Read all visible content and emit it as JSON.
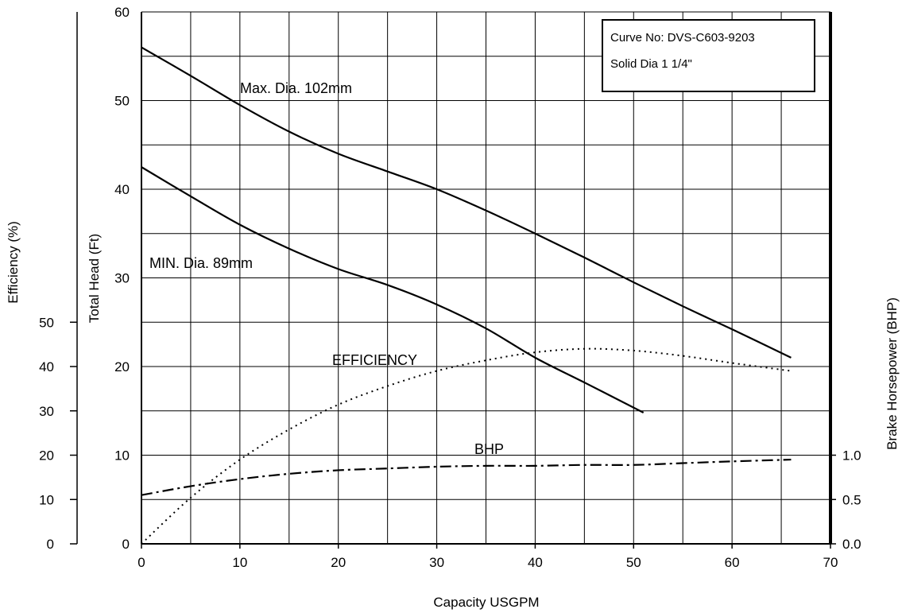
{
  "chart_data": {
    "type": "line",
    "x_axis": {
      "label": "Capacity USGPM",
      "range": [
        0,
        70
      ],
      "ticks": [
        "0",
        "10",
        "20",
        "30",
        "40",
        "50",
        "60",
        "70"
      ]
    },
    "y_axis_head": {
      "label": "Total Head (Ft)",
      "range": [
        0,
        60
      ],
      "ticks": [
        "0",
        "10",
        "20",
        "30",
        "40",
        "50",
        "60"
      ]
    },
    "y_axis_efficiency": {
      "label": "Efficiency (%)",
      "ticks": [
        "0",
        "10",
        "20",
        "30",
        "40",
        "50"
      ]
    },
    "y_axis_bhp": {
      "label": "Brake Horsepower (BHP)",
      "ticks": [
        "0.0",
        "0.5",
        "1.0"
      ]
    },
    "info_box": {
      "curve_no": "Curve No: DVS-C603-9203",
      "solid": "Solid Dia 1 1/4\""
    },
    "grid": true,
    "series": [
      {
        "name": "Max. Dia. 102mm",
        "axis": "head",
        "style": "solid",
        "x": [
          0,
          5,
          10,
          15,
          20,
          25,
          30,
          35,
          40,
          45,
          50,
          55,
          60,
          66
        ],
        "y": [
          56,
          52.8,
          49.5,
          46.5,
          44,
          42,
          40,
          37.6,
          35,
          32.3,
          29.5,
          26.8,
          24.2,
          21
        ]
      },
      {
        "name": "MIN. Dia. 89mm",
        "axis": "head",
        "style": "solid",
        "x": [
          0,
          5,
          10,
          15,
          20,
          25,
          30,
          35,
          40,
          45,
          51
        ],
        "y": [
          42.5,
          39.2,
          36,
          33.3,
          31,
          29.2,
          27,
          24.3,
          21,
          18.2,
          14.8
        ]
      },
      {
        "name": "EFFICIENCY",
        "axis": "head",
        "style": "dotted",
        "x": [
          0,
          5,
          10,
          15,
          20,
          25,
          30,
          35,
          40,
          45,
          50,
          55,
          60,
          66
        ],
        "y": [
          0,
          5.2,
          9.5,
          12.9,
          15.7,
          17.8,
          19.5,
          20.7,
          21.6,
          22,
          21.8,
          21.2,
          20.4,
          19.5
        ]
      },
      {
        "name": "BHP",
        "axis": "head",
        "style": "dashdot",
        "x": [
          0,
          5,
          10,
          15,
          20,
          25,
          30,
          35,
          40,
          45,
          50,
          55,
          60,
          66
        ],
        "y": [
          5.5,
          6.5,
          7.3,
          7.9,
          8.3,
          8.5,
          8.7,
          8.8,
          8.8,
          8.9,
          8.9,
          9.1,
          9.3,
          9.5
        ]
      }
    ]
  }
}
